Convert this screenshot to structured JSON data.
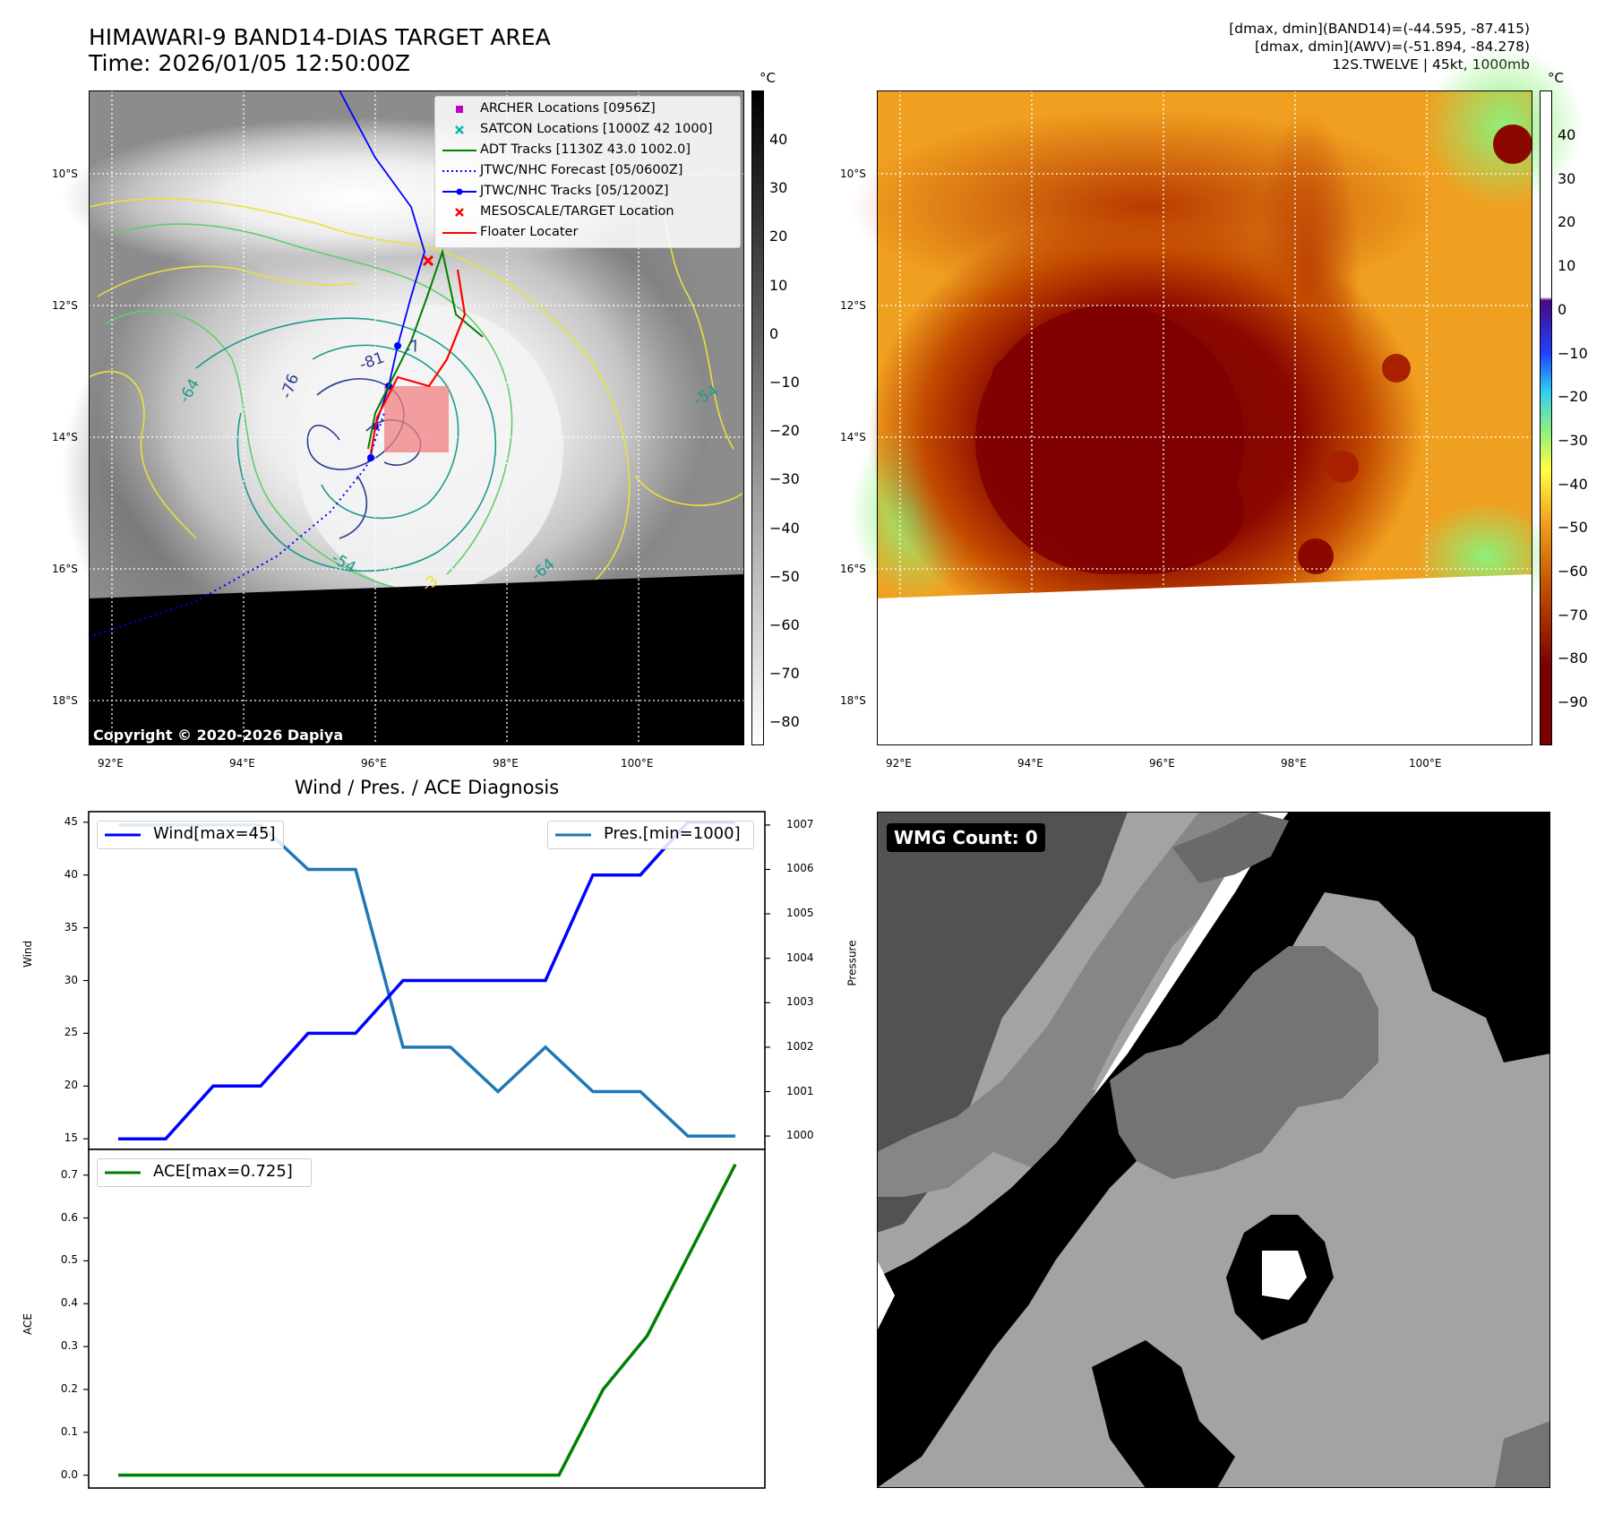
{
  "header": {
    "title_line1": "HIMAWARI-9 BAND14-DIAS TARGET AREA",
    "title_line2": "Time: 2026/01/05 12:50:00Z",
    "info_line1": "[dmax, dmin](BAND14)=(-44.595, -87.415)",
    "info_line2": "[dmax, dmin](AWV)=(-51.894, -84.278)",
    "info_line3": "12S.TWELVE | 45kt, 1000mb"
  },
  "map": {
    "lat_labels": [
      "10°S",
      "12°S",
      "14°S",
      "16°S",
      "18°S"
    ],
    "lon_labels": [
      "92°E",
      "94°E",
      "96°E",
      "98°E",
      "100°E"
    ],
    "copyright": "Copyright © 2020-2026 Dapiya",
    "contour_labels": [
      "-81",
      "-76",
      "-7",
      "-64",
      "-54",
      "-54",
      "-64",
      "-3"
    ],
    "legend": [
      {
        "label": "ARCHER Locations [0956Z]",
        "symbol": "square",
        "color": "#c000c0"
      },
      {
        "label": "SATCON Locations [1000Z 42 1000]",
        "symbol": "x",
        "color": "#00b8b0"
      },
      {
        "label": "ADT Tracks [1130Z 43.0 1002.0]",
        "symbol": "line",
        "color": "#008000"
      },
      {
        "label": "JTWC/NHC Forecast [05/0600Z]",
        "symbol": "dotted",
        "color": "#0000ff"
      },
      {
        "label": "JTWC/NHC Tracks [05/1200Z]",
        "symbol": "line-dot",
        "color": "#0000ff"
      },
      {
        "label": "MESOSCALE/TARGET Location",
        "symbol": "x",
        "color": "#ff0000"
      },
      {
        "label": "Floater Locater",
        "symbol": "line",
        "color": "#ff0000"
      }
    ]
  },
  "colorbars": {
    "unit": "°C",
    "left_ticks": [
      "40",
      "30",
      "20",
      "10",
      "0",
      "−10",
      "−20",
      "−30",
      "−40",
      "−50",
      "−60",
      "−70",
      "−80"
    ],
    "right_ticks": [
      "40",
      "30",
      "20",
      "10",
      "0",
      "−10",
      "−20",
      "−30",
      "−40",
      "−50",
      "−60",
      "−70",
      "−80",
      "−90"
    ]
  },
  "chart_data": [
    {
      "type": "line",
      "title": "Wind / Pres. / ACE Diagnosis",
      "ylabel": "Wind",
      "ylim": [
        14,
        46
      ],
      "yticks": [
        "15",
        "20",
        "25",
        "30",
        "35",
        "40",
        "45"
      ],
      "series": [
        {
          "name": "Wind[max=45]",
          "color": "#0000ff",
          "axis": "left",
          "values": [
            15,
            15,
            20,
            20,
            25,
            25,
            30,
            30,
            30,
            30,
            40,
            40,
            45,
            45
          ]
        }
      ]
    },
    {
      "type": "line",
      "ylabel": "Pressure",
      "ylim": [
        999.7,
        1007.3
      ],
      "yticks": [
        "1000",
        "1001",
        "1002",
        "1003",
        "1004",
        "1005",
        "1006",
        "1007"
      ],
      "series": [
        {
          "name": "Pres.[min=1000]",
          "color": "#1f77b4",
          "axis": "right",
          "values": [
            1007,
            1007,
            1007,
            1007,
            1006,
            1006,
            1002,
            1002,
            1001,
            1002,
            1001,
            1001,
            1000,
            1000
          ]
        }
      ]
    },
    {
      "type": "line",
      "ylabel": "ACE",
      "ylim": [
        -0.03,
        0.76
      ],
      "yticks": [
        "0.0",
        "0.1",
        "0.2",
        "0.3",
        "0.4",
        "0.5",
        "0.6",
        "0.7"
      ],
      "series": [
        {
          "name": "ACE[max=0.725]",
          "color": "#008000",
          "values": [
            0,
            0,
            0,
            0,
            0,
            0,
            0,
            0,
            0,
            0,
            0,
            0.2,
            0.325,
            0.525,
            0.725
          ]
        }
      ]
    }
  ],
  "wmg": {
    "badge": "WMG Count: 0"
  }
}
